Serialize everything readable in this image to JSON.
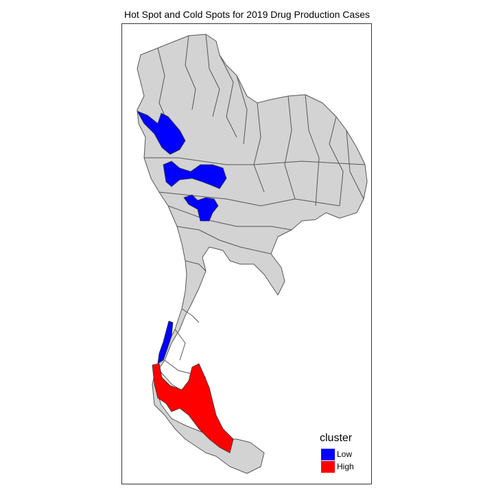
{
  "title": "Hot Spot and Cold Spots for 2019 Drug Production Cases",
  "legend": {
    "title": "cluster",
    "items": [
      {
        "label": "Low",
        "color": "#0000ff"
      },
      {
        "label": "High",
        "color": "#ff0000"
      }
    ]
  },
  "colors": {
    "province_fill": "#d3d3d3",
    "province_border": "#555555",
    "low": "#0000ff",
    "high": "#ff0000"
  },
  "regions": {
    "north_cold_spot": "Low",
    "central_cold_spot": "Low",
    "west_cold_spot": "Low",
    "peninsula_cold_spot": "Low",
    "south_hot_spot": "High"
  }
}
